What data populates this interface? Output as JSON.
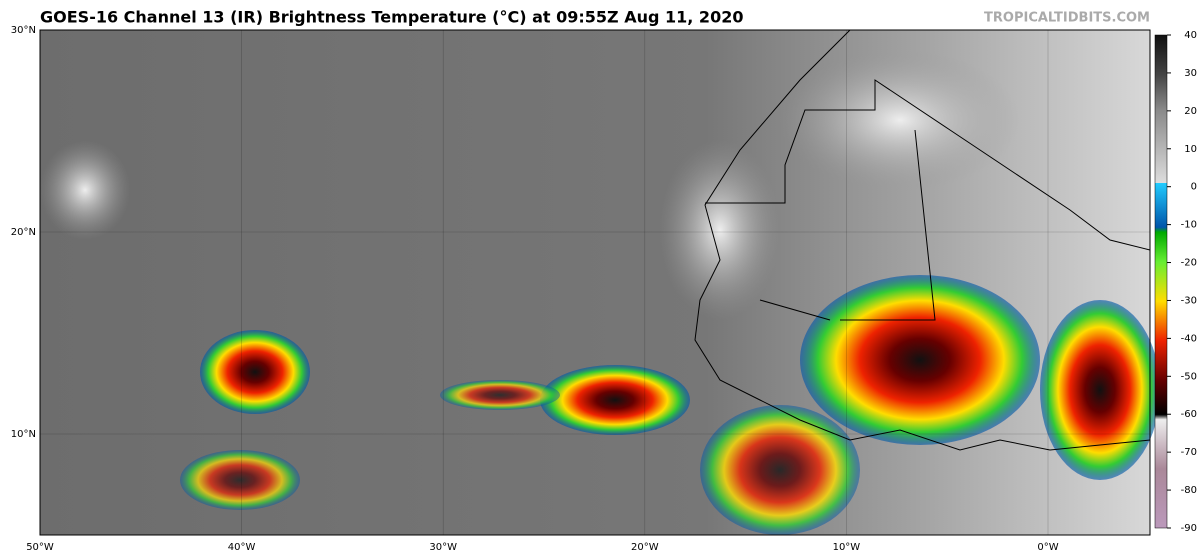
{
  "header": {
    "title": "GOES-16 Channel 13 (IR) Brightness Temperature (°C) at 09:55Z Aug 11, 2020",
    "source": "TROPICALTIDBITS.COM"
  },
  "map": {
    "lat_labels": [
      "30°N",
      "20°N",
      "10°N"
    ],
    "lon_labels": [
      "50°W",
      "40°W",
      "30°W",
      "20°W",
      "10°W",
      "0°W"
    ]
  },
  "colorbar": {
    "ticks": [
      40,
      30,
      20,
      10,
      0,
      -10,
      -20,
      -30,
      -40,
      -50,
      -60,
      -70,
      -80,
      -90
    ]
  }
}
